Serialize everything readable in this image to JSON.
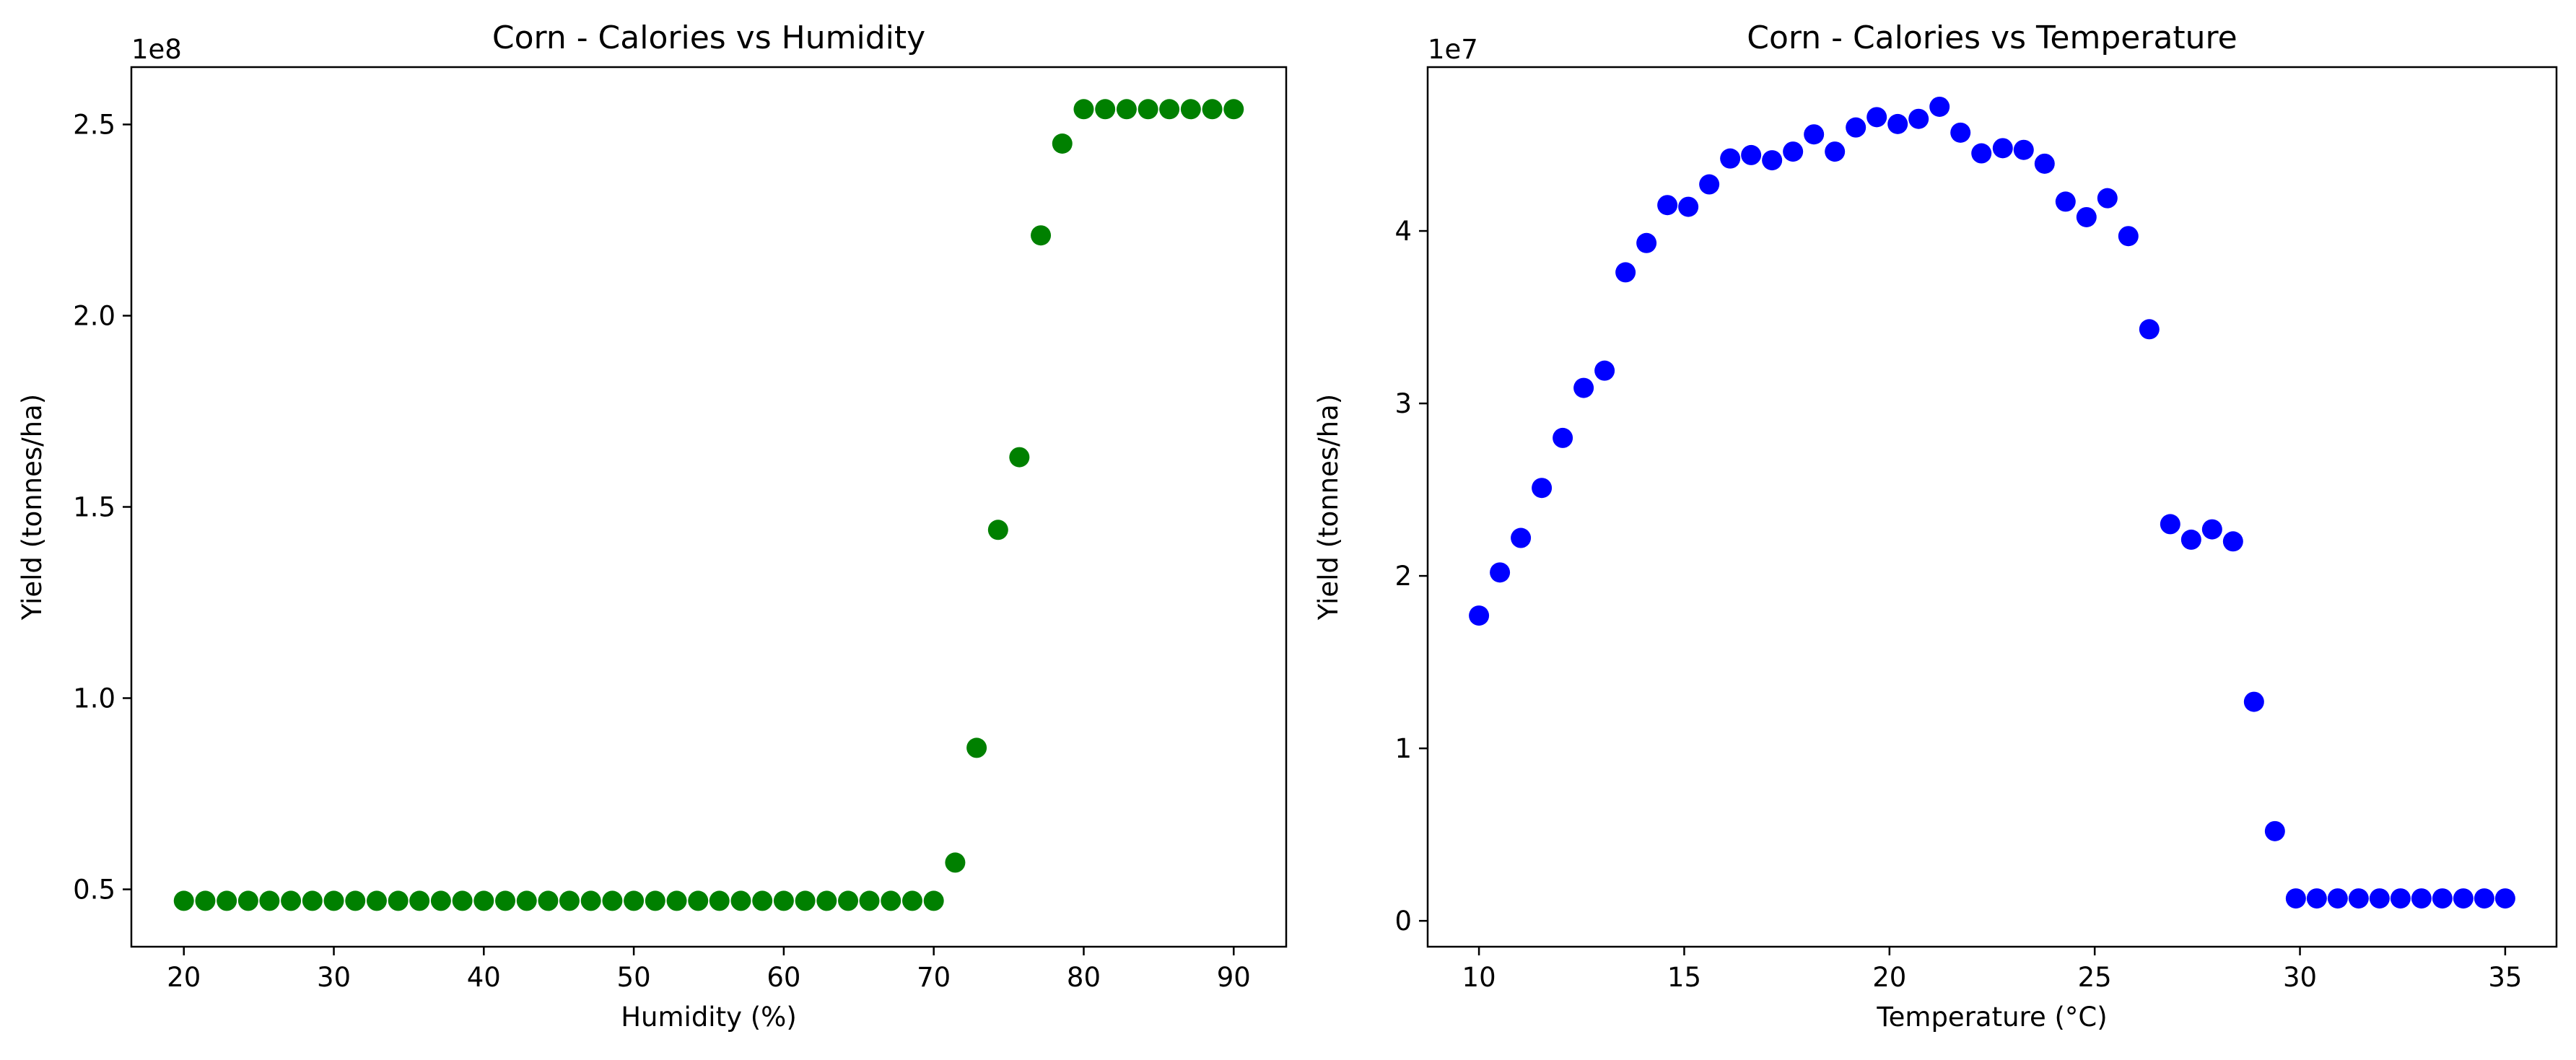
{
  "chart_data": [
    {
      "type": "scatter",
      "title": "Corn - Calories vs Humidity",
      "xlabel": "Humidity (%)",
      "ylabel": "Yield (tonnes/ha)",
      "y_scale_label": "1e8",
      "xlim": [
        16.5,
        93.5
      ],
      "ylim": [
        0.35,
        2.65
      ],
      "xticks": [
        20,
        30,
        40,
        50,
        60,
        70,
        80,
        90
      ],
      "xtick_labels": [
        "20",
        "30",
        "40",
        "50",
        "60",
        "70",
        "80",
        "90"
      ],
      "yticks": [
        0.5,
        1.0,
        1.5,
        2.0,
        2.5
      ],
      "ytick_labels": [
        "0.5",
        "1.0",
        "1.5",
        "2.0",
        "2.5"
      ],
      "grid": false,
      "color": "#008000",
      "series": [
        {
          "x": [
            20.0,
            21.43,
            22.86,
            24.29,
            25.71,
            27.14,
            28.57,
            30.0,
            31.43,
            32.86,
            34.29,
            35.71,
            37.14,
            38.57,
            40.0,
            41.43,
            42.86,
            44.29,
            45.71,
            47.14,
            48.57,
            50.0,
            51.43,
            52.86,
            54.29,
            55.71,
            57.14,
            58.57,
            60.0,
            61.43,
            62.86,
            64.29,
            65.71,
            67.14,
            68.57,
            70.0,
            71.43,
            72.86,
            74.29,
            75.71,
            77.14,
            78.57,
            80.0,
            81.43,
            82.86,
            84.29,
            85.71,
            87.14,
            88.57,
            90.0
          ],
          "values": [
            0.47,
            0.47,
            0.47,
            0.47,
            0.47,
            0.47,
            0.47,
            0.47,
            0.47,
            0.47,
            0.47,
            0.47,
            0.47,
            0.47,
            0.47,
            0.47,
            0.47,
            0.47,
            0.47,
            0.47,
            0.47,
            0.47,
            0.47,
            0.47,
            0.47,
            0.47,
            0.47,
            0.47,
            0.47,
            0.47,
            0.47,
            0.47,
            0.47,
            0.47,
            0.47,
            0.47,
            0.57,
            0.87,
            1.44,
            1.63,
            2.21,
            2.45,
            2.54,
            2.54,
            2.54,
            2.54,
            2.54,
            2.54,
            2.54,
            2.54
          ]
        }
      ]
    },
    {
      "type": "scatter",
      "title": "Corn - Calories vs Temperature",
      "xlabel": "Temperature (°C)",
      "ylabel": "Yield (tonnes/ha)",
      "y_scale_label": "1e7",
      "xlim": [
        8.75,
        36.25
      ],
      "ylim": [
        -0.15,
        4.95
      ],
      "xticks": [
        10,
        15,
        20,
        25,
        30,
        35
      ],
      "xtick_labels": [
        "10",
        "15",
        "20",
        "25",
        "30",
        "35"
      ],
      "yticks": [
        0,
        1,
        2,
        3,
        4
      ],
      "ytick_labels": [
        "0",
        "1",
        "2",
        "3",
        "4"
      ],
      "grid": false,
      "color": "#0000ff",
      "series": [
        {
          "x": [
            10.0,
            10.51,
            11.02,
            11.53,
            12.04,
            12.55,
            13.06,
            13.57,
            14.08,
            14.59,
            15.1,
            15.61,
            16.12,
            16.63,
            17.14,
            17.65,
            18.16,
            18.67,
            19.18,
            19.69,
            20.2,
            20.71,
            21.22,
            21.73,
            22.24,
            22.76,
            23.27,
            23.78,
            24.29,
            24.8,
            25.31,
            25.82,
            26.33,
            26.84,
            27.35,
            27.86,
            28.37,
            28.88,
            29.39,
            29.9,
            30.41,
            30.92,
            31.43,
            31.94,
            32.45,
            32.96,
            33.47,
            33.98,
            34.49,
            35.0
          ],
          "values": [
            1.77,
            2.02,
            2.22,
            2.51,
            2.8,
            3.09,
            3.19,
            3.76,
            3.93,
            4.15,
            4.14,
            4.27,
            4.42,
            4.44,
            4.41,
            4.46,
            4.56,
            4.46,
            4.6,
            4.66,
            4.62,
            4.65,
            4.72,
            4.57,
            4.45,
            4.48,
            4.47,
            4.39,
            4.17,
            4.08,
            4.19,
            3.97,
            3.43,
            2.3,
            2.21,
            2.27,
            2.2,
            1.27,
            0.52,
            0.13,
            0.13,
            0.13,
            0.13,
            0.13,
            0.13,
            0.13,
            0.13,
            0.13,
            0.13,
            0.13
          ]
        }
      ]
    }
  ]
}
